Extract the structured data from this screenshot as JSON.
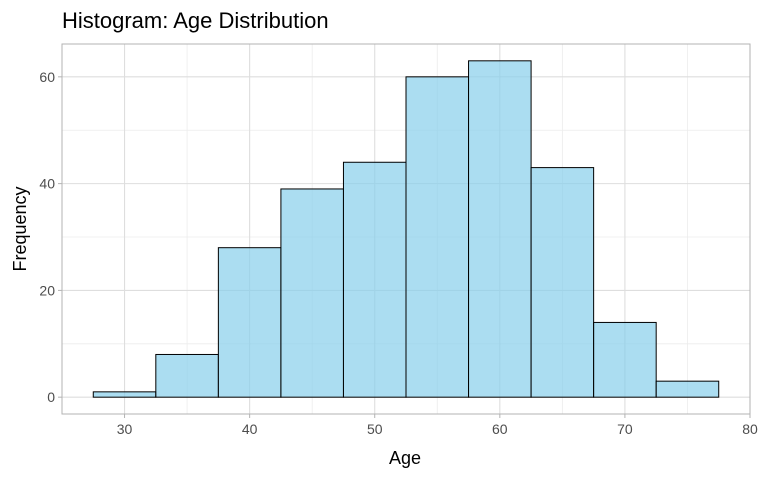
{
  "chart_data": {
    "type": "bar",
    "title": "Histogram: Age Distribution",
    "xlabel": "Age",
    "ylabel": "Frequency",
    "bin_width": 5,
    "bins": [
      {
        "start": 27.5,
        "end": 32.5,
        "count": 1
      },
      {
        "start": 32.5,
        "end": 37.5,
        "count": 8
      },
      {
        "start": 37.5,
        "end": 42.5,
        "count": 28
      },
      {
        "start": 42.5,
        "end": 47.5,
        "count": 39
      },
      {
        "start": 47.5,
        "end": 52.5,
        "count": 44
      },
      {
        "start": 52.5,
        "end": 57.5,
        "count": 60
      },
      {
        "start": 57.5,
        "end": 62.5,
        "count": 63
      },
      {
        "start": 62.5,
        "end": 67.5,
        "count": 43
      },
      {
        "start": 67.5,
        "end": 72.5,
        "count": 14
      },
      {
        "start": 72.5,
        "end": 77.5,
        "count": 3
      }
    ],
    "xlim": [
      25,
      80
    ],
    "ylim": [
      -3.15,
      66.15
    ],
    "x_ticks": [
      "30",
      "40",
      "50",
      "60",
      "70",
      "80"
    ],
    "y_ticks": [
      "0",
      "20",
      "40",
      "60"
    ],
    "grid": true,
    "legend": "none",
    "colors": {
      "bar_fill": "#87ceeb",
      "bar_fill_opacity": 0.7,
      "bar_outline": "#000000",
      "grid_major": "#dedede",
      "grid_minor": "#ececec",
      "panel_border": "#b3b3b3",
      "tick_text": "#4d4d4d"
    }
  }
}
